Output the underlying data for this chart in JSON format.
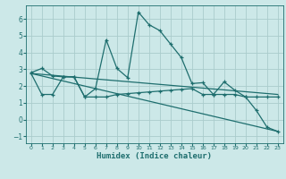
{
  "xlabel": "Humidex (Indice chaleur)",
  "bg_color": "#cce8e8",
  "grid_color": "#aacccc",
  "line_color": "#1e6e6e",
  "xlim": [
    -0.5,
    23.5
  ],
  "ylim": [
    -1.4,
    6.8
  ],
  "xticks": [
    0,
    1,
    2,
    3,
    4,
    5,
    6,
    7,
    8,
    9,
    10,
    11,
    12,
    13,
    14,
    15,
    16,
    17,
    18,
    19,
    20,
    21,
    22,
    23
  ],
  "yticks": [
    -1,
    0,
    1,
    2,
    3,
    4,
    5,
    6
  ],
  "line1_x": [
    0,
    1,
    2,
    3,
    4,
    5,
    6,
    7,
    8,
    9,
    10,
    11,
    12,
    13,
    14,
    15,
    16,
    17,
    18,
    19,
    20,
    21,
    22,
    23
  ],
  "line1_y": [
    2.8,
    3.05,
    2.6,
    2.55,
    2.55,
    1.35,
    1.85,
    4.75,
    3.05,
    2.5,
    6.4,
    5.65,
    5.3,
    4.5,
    3.7,
    2.15,
    2.2,
    1.5,
    2.25,
    1.75,
    1.35,
    0.55,
    -0.45,
    -0.7
  ],
  "line2_x": [
    0,
    1,
    2,
    3,
    4,
    5,
    6,
    7,
    8,
    9,
    10,
    11,
    12,
    13,
    14,
    15,
    16,
    17,
    18,
    19,
    20,
    21,
    22,
    23
  ],
  "line2_y": [
    2.75,
    1.5,
    1.5,
    2.55,
    2.55,
    1.35,
    1.35,
    1.35,
    1.5,
    1.55,
    1.6,
    1.65,
    1.7,
    1.75,
    1.8,
    1.85,
    1.5,
    1.5,
    1.5,
    1.5,
    1.35,
    1.35,
    1.35,
    1.35
  ],
  "line3_x": [
    0,
    23
  ],
  "line3_y": [
    2.75,
    -0.7
  ],
  "line4_x": [
    0,
    23
  ],
  "line4_y": [
    2.75,
    1.5
  ]
}
